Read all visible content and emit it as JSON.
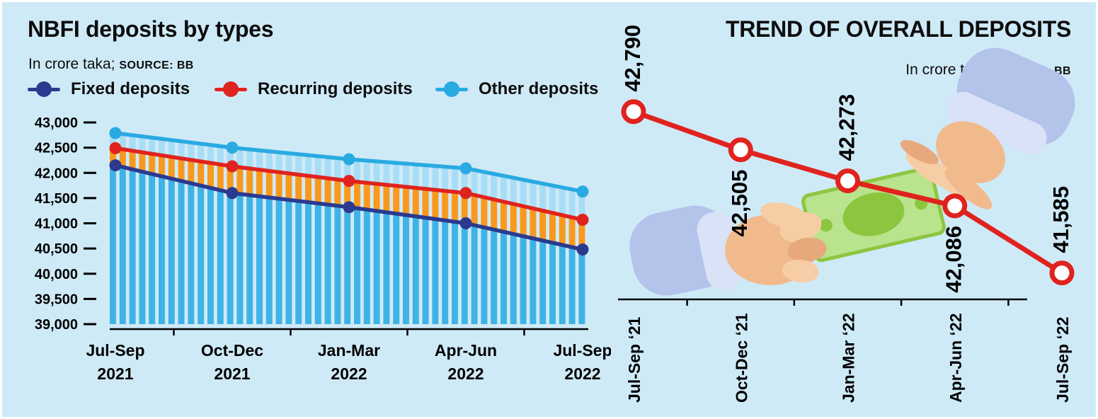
{
  "page": {
    "background_color": "#cfeaf7",
    "frame_color": "#ffffff"
  },
  "chart_data": [
    {
      "id": "nbfi-deposits-by-types",
      "type": "line",
      "title": "NBFI deposits by types",
      "unit_label": "In crore taka;",
      "source_label": "SOURCE: BB",
      "categories": [
        "Jul-Sep 2021",
        "Oct-Dec 2021",
        "Jan-Mar 2022",
        "Apr-Jun 2022",
        "Jul-Sep 2022"
      ],
      "categories_line1": [
        "Jul-Sep",
        "Oct-Dec",
        "Jan-Mar",
        "Apr-Jun",
        "Jul-Sep"
      ],
      "categories_line2": [
        "2021",
        "2021",
        "2022",
        "2022",
        "2022"
      ],
      "ylim": [
        39000,
        43000
      ],
      "ytick_step": 500,
      "ytick_labels": [
        "43,000",
        "42,500",
        "42,000",
        "41,500",
        "41,000",
        "40,500",
        "40,000",
        "39,500",
        "39,000"
      ],
      "grid": false,
      "legend_position": "top",
      "series": [
        {
          "name": "Fixed deposits",
          "color": "#2b3a8f",
          "values": [
            42150,
            41600,
            41320,
            41000,
            40480
          ]
        },
        {
          "name": "Recurring deposits",
          "color": "#e0231e",
          "values": [
            42490,
            42130,
            41840,
            41600,
            41070
          ]
        },
        {
          "name": "Other deposits",
          "color": "#29aae2",
          "values": [
            42790,
            42500,
            42270,
            42090,
            41630
          ]
        }
      ],
      "band_fills": [
        {
          "between": [
            "baseline",
            "Fixed deposits"
          ],
          "stripe_color": "#3fb3e6"
        },
        {
          "between": [
            "Fixed deposits",
            "Recurring deposits"
          ],
          "stripe_color": "#f8991d"
        },
        {
          "between": [
            "Recurring deposits",
            "Other deposits"
          ],
          "stripe_color": "#a8ddf6"
        }
      ]
    },
    {
      "id": "trend-of-overall-deposits",
      "type": "line",
      "title": "TREND OF OVERALL DEPOSITS",
      "unit_label": "In crore taka;",
      "source_label": "SOURCE: BB",
      "categories": [
        "Jul-Sep ‘21",
        "Oct-Dec ‘21",
        "Jan-Mar ‘22",
        "Apr-Jun ‘22",
        "Jul-Sep ‘22"
      ],
      "values": [
        42790,
        42505,
        42273,
        42086,
        41585
      ],
      "point_labels": [
        "42,790",
        "42,505",
        "42,273",
        "42,086",
        "41,585"
      ],
      "label_side": [
        "above",
        "below",
        "above",
        "below",
        "above"
      ],
      "line_color": "#e0231e",
      "marker_fill": "#ffffff",
      "ylim": [
        41430,
        43000
      ],
      "grid": false
    }
  ]
}
